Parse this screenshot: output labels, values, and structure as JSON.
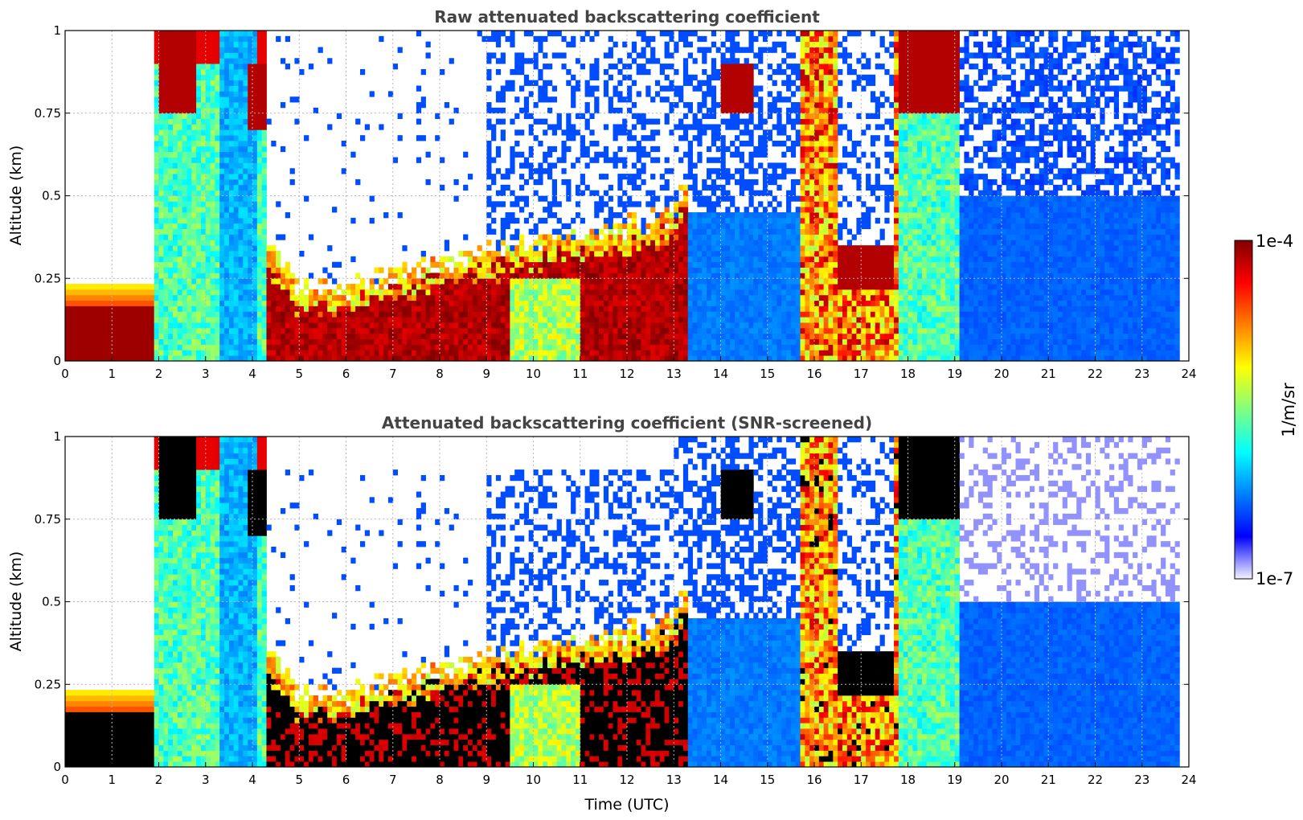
{
  "colors": {
    "background": "#ffffff",
    "title": "#444444",
    "grid": "#b8b8b8",
    "colormap": [
      "#f4f4ff",
      "#0000ff",
      "#0080ff",
      "#00ffff",
      "#80ff80",
      "#ffff00",
      "#ff8000",
      "#ff0000",
      "#800000"
    ]
  },
  "chart_data": [
    {
      "type": "heatmap",
      "title": "Raw attenuated backscattering coefficient",
      "xlabel": "",
      "ylabel": "Altitude (km)",
      "xlim": [
        0,
        24
      ],
      "ylim": [
        0,
        1
      ],
      "xticks": [
        "0",
        "1",
        "2",
        "3",
        "4",
        "5",
        "6",
        "7",
        "8",
        "9",
        "10",
        "11",
        "12",
        "13",
        "14",
        "15",
        "16",
        "17",
        "18",
        "19",
        "20",
        "21",
        "22",
        "23",
        "24"
      ],
      "yticks": [
        "0",
        "0.25",
        "0.5",
        "0.75",
        "1"
      ],
      "grid": true
    },
    {
      "type": "heatmap",
      "title": "Attenuated backscattering coefficient (SNR-screened)",
      "xlabel": "Time (UTC)",
      "ylabel": "Altitude (km)",
      "xlim": [
        0,
        24
      ],
      "ylim": [
        0,
        1
      ],
      "xticks": [
        "0",
        "1",
        "2",
        "3",
        "4",
        "5",
        "6",
        "7",
        "8",
        "9",
        "10",
        "11",
        "12",
        "13",
        "14",
        "15",
        "16",
        "17",
        "18",
        "19",
        "20",
        "21",
        "22",
        "23",
        "24"
      ],
      "yticks": [
        "0",
        "0.25",
        "0.5",
        "0.75",
        "1"
      ],
      "grid": true
    }
  ],
  "colorbar": {
    "max_label": "1e-4",
    "min_label": "1e-7",
    "unit_label": "1/m/sr",
    "log_range": [
      -7,
      -4
    ]
  }
}
